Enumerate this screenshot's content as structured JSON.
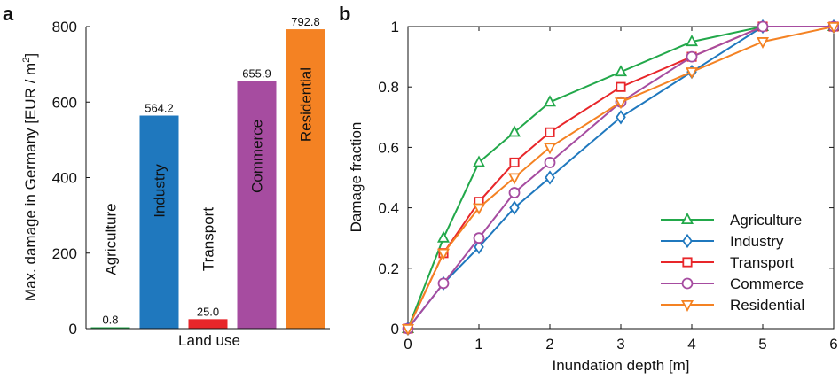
{
  "chart_data": [
    {
      "panel": "a",
      "type": "bar",
      "xlabel": "Land use",
      "ylabel": "Max. damage in Germany [EUR / m²]",
      "ylim": [
        0,
        800
      ],
      "yticks": [
        0,
        200,
        400,
        600,
        800
      ],
      "categories": [
        "Agriculture",
        "Industry",
        "Transport",
        "Commerce",
        "Residential"
      ],
      "values": [
        0.8,
        564.2,
        25.0,
        655.9,
        792.8
      ],
      "value_labels": [
        "0.8",
        "564.2",
        "25.0",
        "655.9",
        "792.8"
      ],
      "colors": [
        "#22a84a",
        "#1f78be",
        "#e8262a",
        "#a64ca0",
        "#f48223"
      ]
    },
    {
      "panel": "b",
      "type": "line",
      "xlabel": "Inundation depth [m]",
      "ylabel": "Damage fraction",
      "xlim": [
        0,
        6
      ],
      "ylim": [
        0,
        1
      ],
      "xticks": [
        0,
        1,
        2,
        3,
        4,
        5,
        6
      ],
      "yticks": [
        0,
        0.2,
        0.4,
        0.6,
        0.8,
        1
      ],
      "ytick_labels": [
        "0",
        "0.2",
        "0.4",
        "0.6",
        "0.8",
        "1"
      ],
      "legend_position": "bottom-right",
      "x": [
        0,
        0.5,
        1,
        1.5,
        2,
        3,
        4,
        5,
        6
      ],
      "series": [
        {
          "name": "Agriculture",
          "marker": "triangle-up",
          "color": "#22a84a",
          "values": [
            0,
            0.3,
            0.55,
            0.65,
            0.75,
            0.85,
            0.95,
            1,
            1
          ]
        },
        {
          "name": "Industry",
          "marker": "diamond",
          "color": "#1f78be",
          "values": [
            0,
            0.15,
            0.27,
            0.4,
            0.5,
            0.7,
            0.85,
            1,
            1
          ]
        },
        {
          "name": "Transport",
          "marker": "square",
          "color": "#e8262a",
          "values": [
            0,
            0.25,
            0.42,
            0.55,
            0.65,
            0.8,
            0.9,
            1,
            1
          ]
        },
        {
          "name": "Commerce",
          "marker": "circle",
          "color": "#a64ca0",
          "values": [
            0,
            0.15,
            0.3,
            0.45,
            0.55,
            0.75,
            0.9,
            1,
            1
          ]
        },
        {
          "name": "Residential",
          "marker": "triangle-down",
          "color": "#f48223",
          "values": [
            0,
            0.25,
            0.4,
            0.5,
            0.6,
            0.75,
            0.85,
            0.95,
            1
          ]
        }
      ]
    }
  ],
  "panel_labels": {
    "a": "a",
    "b": "b"
  }
}
